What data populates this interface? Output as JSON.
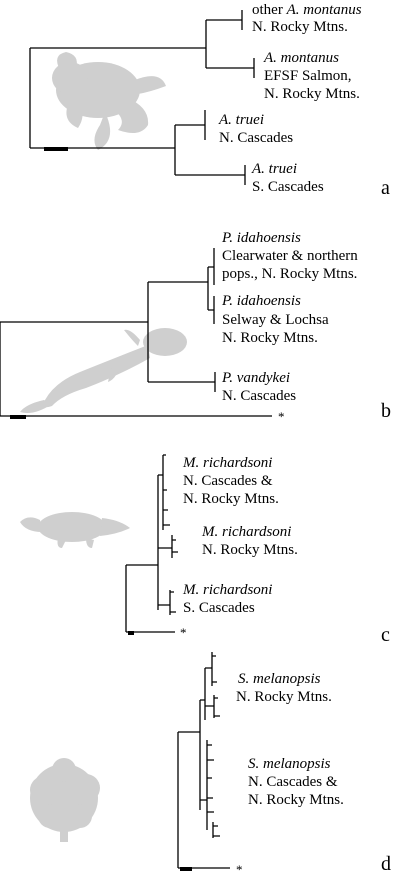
{
  "panels": [
    {
      "id": "a",
      "letter": "a",
      "silhouette_icon": "frog-silhouette-icon",
      "clades": [
        {
          "italic": "",
          "line1_rest": "other ",
          "line1_italic_tail": "A. montanus",
          "line2": "N. Rocky Mtns.",
          "line3": ""
        },
        {
          "italic": "A. montanus",
          "line2": "EFSF Salmon,",
          "line3": "N. Rocky Mtns."
        },
        {
          "italic": "A. truei",
          "line2": "N. Cascades",
          "line3": ""
        },
        {
          "italic": "A. truei",
          "line2": "S. Cascades",
          "line3": ""
        }
      ]
    },
    {
      "id": "b",
      "letter": "b",
      "silhouette_icon": "salamander-silhouette-icon",
      "outgroup_marker": "*",
      "clades": [
        {
          "italic": "P. idahoensis",
          "line2": "Clearwater & northern",
          "line3": "pops., N. Rocky Mtns."
        },
        {
          "italic": "P. idahoensis",
          "line2": "Selway & Lochsa",
          "line3": "N. Rocky Mtns."
        },
        {
          "italic": "P. vandykei",
          "line2": "N. Cascades",
          "line3": ""
        }
      ]
    },
    {
      "id": "c",
      "letter": "c",
      "silhouette_icon": "shrew-silhouette-icon",
      "outgroup_marker": "*",
      "clades": [
        {
          "italic": "M. richardsoni",
          "line2": "N. Cascades &",
          "line3": "N. Rocky Mtns."
        },
        {
          "italic": "M. richardsoni",
          "line2": "N. Rocky Mtns.",
          "line3": ""
        },
        {
          "italic": "M. richardsoni",
          "line2": "S. Cascades",
          "line3": ""
        }
      ]
    },
    {
      "id": "d",
      "letter": "d",
      "silhouette_icon": "willow-tree-silhouette-icon",
      "outgroup_marker": "*",
      "clades": [
        {
          "italic": "S. melanopsis",
          "line2": "N. Rocky Mtns.",
          "line3": ""
        },
        {
          "italic": "S. melanopsis",
          "line2": "N. Cascades &",
          "line3": "N. Rocky Mtns."
        }
      ]
    }
  ]
}
